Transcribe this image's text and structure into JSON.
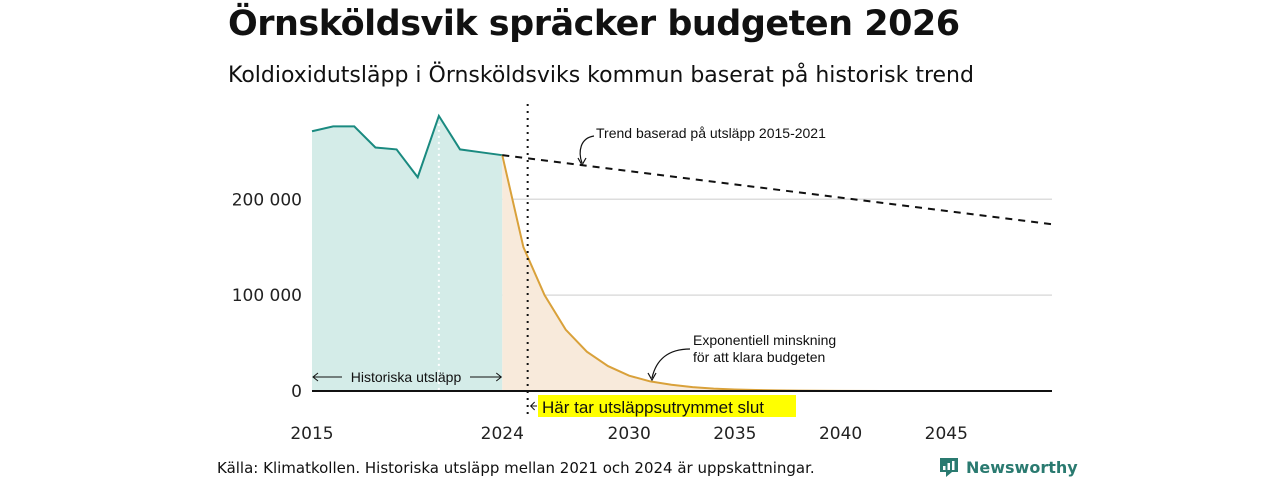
{
  "title": "Örnsköldsvik spräcker budgeten 2026",
  "subtitle": "Koldioxidutsläpp i Örnsköldsviks kommun baserat på historisk trend",
  "source": "Källa: Klimatkollen. Historiska utsläpp mellan 2021 och 2024 är uppskattningar.",
  "brand": "Newsworthy",
  "colors": {
    "historical_line": "#1a8a80",
    "historical_fill": "#d4ece8",
    "budget_line": "#d9a13a",
    "budget_fill": "#f8eadb",
    "highlight": "#ffff00",
    "grid": "#dddddd"
  },
  "chart_data": {
    "type": "area",
    "xlim": [
      2015,
      2050
    ],
    "ylim": [
      0,
      290000
    ],
    "x_ticks": [
      2015,
      2024,
      2030,
      2035,
      2040,
      2045
    ],
    "y_ticks": [
      0,
      100000,
      200000
    ],
    "y_tick_labels": [
      "0",
      "100 000",
      "200 000"
    ],
    "historical": {
      "x": [
        2015,
        2016,
        2017,
        2018,
        2019,
        2020,
        2021,
        2022,
        2023,
        2024
      ],
      "y": [
        271000,
        276000,
        276000,
        254000,
        252000,
        223000,
        287000,
        252000,
        249000,
        246000
      ]
    },
    "trend": {
      "x": [
        2024,
        2050
      ],
      "y": [
        246000,
        174000
      ]
    },
    "budget": {
      "x": [
        2024,
        2025,
        2026,
        2027,
        2028,
        2029,
        2030,
        2031,
        2032,
        2033,
        2034,
        2035,
        2036,
        2037,
        2038,
        2039,
        2040,
        2042,
        2045,
        2050
      ],
      "y": [
        246000,
        150000,
        100000,
        64000,
        41000,
        26000,
        16000,
        10000,
        6500,
        4000,
        2500,
        1600,
        1000,
        600,
        400,
        250,
        150,
        60,
        15,
        0
      ]
    },
    "cutoff_year": 2025.2,
    "annotations": {
      "trend": "Trend baserad på utsläpp 2015-2021",
      "exp_line1": "Exponentiell minskning",
      "exp_line2": "för att klara budgeten",
      "historical": "Historiska utsläpp",
      "cutoff": "Här tar utsläppsutrymmet slut"
    }
  }
}
